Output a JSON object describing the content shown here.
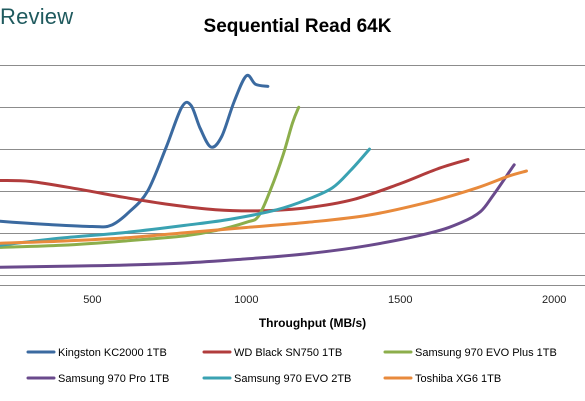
{
  "header": {
    "brand": "Review"
  },
  "chart_data": {
    "type": "line",
    "title": "Sequential Read 64K",
    "xlabel": "Throughput (MB/s)",
    "ylabel": "",
    "xlim": [
      200,
      2100
    ],
    "x_ticks": [
      500,
      1000,
      1500,
      2000
    ],
    "grid": "horizontal",
    "legend_position": "bottom",
    "series": [
      {
        "name": "Kingston KC2000 1TB",
        "color": "#3b6aa0",
        "points": [
          [
            200,
            0.31
          ],
          [
            350,
            0.28
          ],
          [
            500,
            0.26
          ],
          [
            560,
            0.27
          ],
          [
            620,
            0.4
          ],
          [
            680,
            0.6
          ],
          [
            740,
            1.02
          ],
          [
            790,
            1.4
          ],
          [
            820,
            1.42
          ],
          [
            850,
            1.2
          ],
          [
            885,
            1.02
          ],
          [
            920,
            1.12
          ],
          [
            960,
            1.45
          ],
          [
            1000,
            1.7
          ],
          [
            1030,
            1.62
          ],
          [
            1070,
            1.6
          ]
        ]
      },
      {
        "name": "WD Black SN750 1TB",
        "color": "#b13c3c",
        "points": [
          [
            200,
            0.7
          ],
          [
            300,
            0.69
          ],
          [
            450,
            0.62
          ],
          [
            600,
            0.54
          ],
          [
            750,
            0.47
          ],
          [
            900,
            0.42
          ],
          [
            1050,
            0.41
          ],
          [
            1200,
            0.44
          ],
          [
            1350,
            0.52
          ],
          [
            1500,
            0.67
          ],
          [
            1620,
            0.81
          ],
          [
            1720,
            0.9
          ]
        ]
      },
      {
        "name": "Samsung 970 EVO Plus 1TB",
        "color": "#8cae4b",
        "points": [
          [
            200,
            0.06
          ],
          [
            400,
            0.08
          ],
          [
            600,
            0.12
          ],
          [
            800,
            0.17
          ],
          [
            900,
            0.22
          ],
          [
            1000,
            0.3
          ],
          [
            1040,
            0.36
          ],
          [
            1080,
            0.62
          ],
          [
            1120,
            0.95
          ],
          [
            1150,
            1.25
          ],
          [
            1170,
            1.4
          ]
        ]
      },
      {
        "name": "Samsung 970 Pro 1TB",
        "color": "#6a4a8c",
        "points": [
          [
            200,
            -0.13
          ],
          [
            400,
            -0.12
          ],
          [
            600,
            -0.11
          ],
          [
            800,
            -0.09
          ],
          [
            1000,
            -0.05
          ],
          [
            1200,
            0.0
          ],
          [
            1400,
            0.08
          ],
          [
            1600,
            0.2
          ],
          [
            1700,
            0.3
          ],
          [
            1760,
            0.4
          ],
          [
            1800,
            0.55
          ],
          [
            1840,
            0.72
          ],
          [
            1870,
            0.85
          ]
        ]
      },
      {
        "name": "Samsung 970 EVO 2TB",
        "color": "#3aa2b2",
        "points": [
          [
            200,
            0.08
          ],
          [
            400,
            0.15
          ],
          [
            600,
            0.2
          ],
          [
            800,
            0.27
          ],
          [
            950,
            0.33
          ],
          [
            1100,
            0.42
          ],
          [
            1200,
            0.52
          ],
          [
            1280,
            0.63
          ],
          [
            1340,
            0.8
          ],
          [
            1400,
            1.0
          ]
        ]
      },
      {
        "name": "Toshiba XG6 1TB",
        "color": "#e88a3c",
        "points": [
          [
            200,
            0.1
          ],
          [
            400,
            0.12
          ],
          [
            600,
            0.15
          ],
          [
            800,
            0.2
          ],
          [
            1000,
            0.25
          ],
          [
            1200,
            0.3
          ],
          [
            1400,
            0.37
          ],
          [
            1600,
            0.5
          ],
          [
            1750,
            0.63
          ],
          [
            1850,
            0.74
          ],
          [
            1910,
            0.79
          ]
        ]
      }
    ]
  }
}
